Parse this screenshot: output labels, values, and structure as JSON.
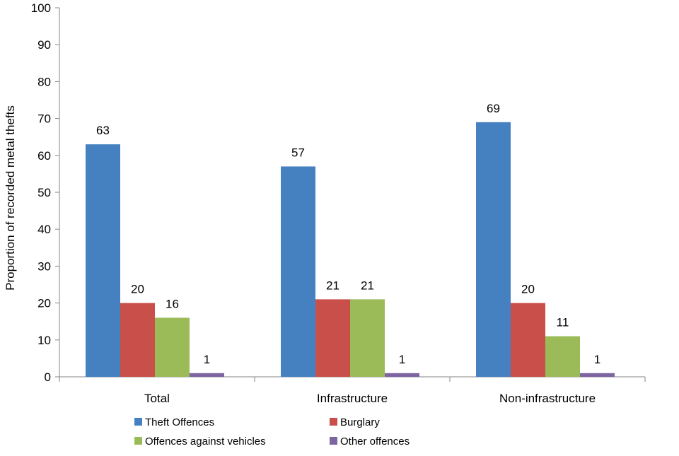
{
  "chart_data": {
    "type": "bar",
    "categories": [
      "Total",
      "Infrastructure",
      "Non-infrastructure"
    ],
    "series": [
      {
        "name": "Theft Offences",
        "color": "#4581C1",
        "values": [
          63,
          57,
          69
        ]
      },
      {
        "name": "Burglary",
        "color": "#C94F4B",
        "values": [
          20,
          21,
          20
        ]
      },
      {
        "name": "Offences against vehicles",
        "color": "#9BBB59",
        "values": [
          16,
          21,
          11
        ]
      },
      {
        "name": "Other offences",
        "color": "#7F64A2",
        "values": [
          1,
          1,
          1
        ]
      }
    ],
    "ylabel": "Proportion of recorded metal thefts",
    "ylim": [
      0,
      100
    ],
    "yticks": [
      0,
      10,
      20,
      30,
      40,
      50,
      60,
      70,
      80,
      90,
      100
    ],
    "grid": false,
    "legend_position": "bottom"
  }
}
